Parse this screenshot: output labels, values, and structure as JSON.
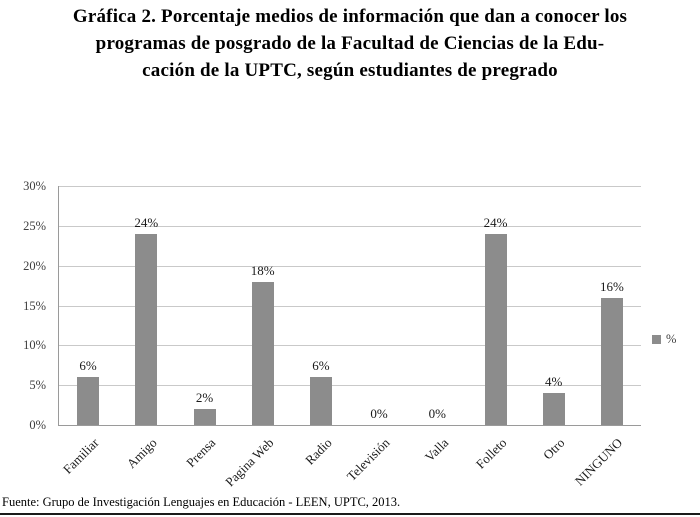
{
  "title": "Gráfica 2. Porcentaje medios de información que dan a conocer los\nprogramas de posgrado de la Facultad de Ciencias de la Edu-\ncación de la UPTC, según estudiantes de pregrado",
  "source": "Fuente: Grupo de Investigación Lenguajes en Educación - LEEN, UPTC, 2013.",
  "legend": {
    "label": "%"
  },
  "colors": {
    "bar": "#8c8c8c",
    "gridline": "#c9c9c9",
    "axis": "#9a9a9a",
    "text": "#1a1a1a"
  },
  "chart_data": {
    "type": "bar",
    "title": "Gráfica 2. Porcentaje medios de información que dan a conocer los programas de posgrado de la Facultad de Ciencias de la Educación de la UPTC, según estudiantes de pregrado",
    "categories": [
      "Familiar",
      "Amigo",
      "Prensa",
      "Pagina Web",
      "Radio",
      "Televisión",
      "Valla",
      "Folleto",
      "Otro",
      "NINGUNO"
    ],
    "values": [
      6,
      24,
      2,
      18,
      6,
      0,
      0,
      24,
      4,
      16
    ],
    "value_labels": [
      "6%",
      "24%",
      "2%",
      "18%",
      "6%",
      "0%",
      "0%",
      "24%",
      "4%",
      "16%"
    ],
    "series_name": "%",
    "xlabel": "",
    "ylabel": "",
    "ylim": [
      0,
      30
    ],
    "ytick_step": 5,
    "ytick_labels": [
      "0%",
      "5%",
      "10%",
      "15%",
      "20%",
      "25%",
      "30%"
    ],
    "grid": true,
    "legend_position": "right",
    "bar_color": "#8c8c8c"
  }
}
